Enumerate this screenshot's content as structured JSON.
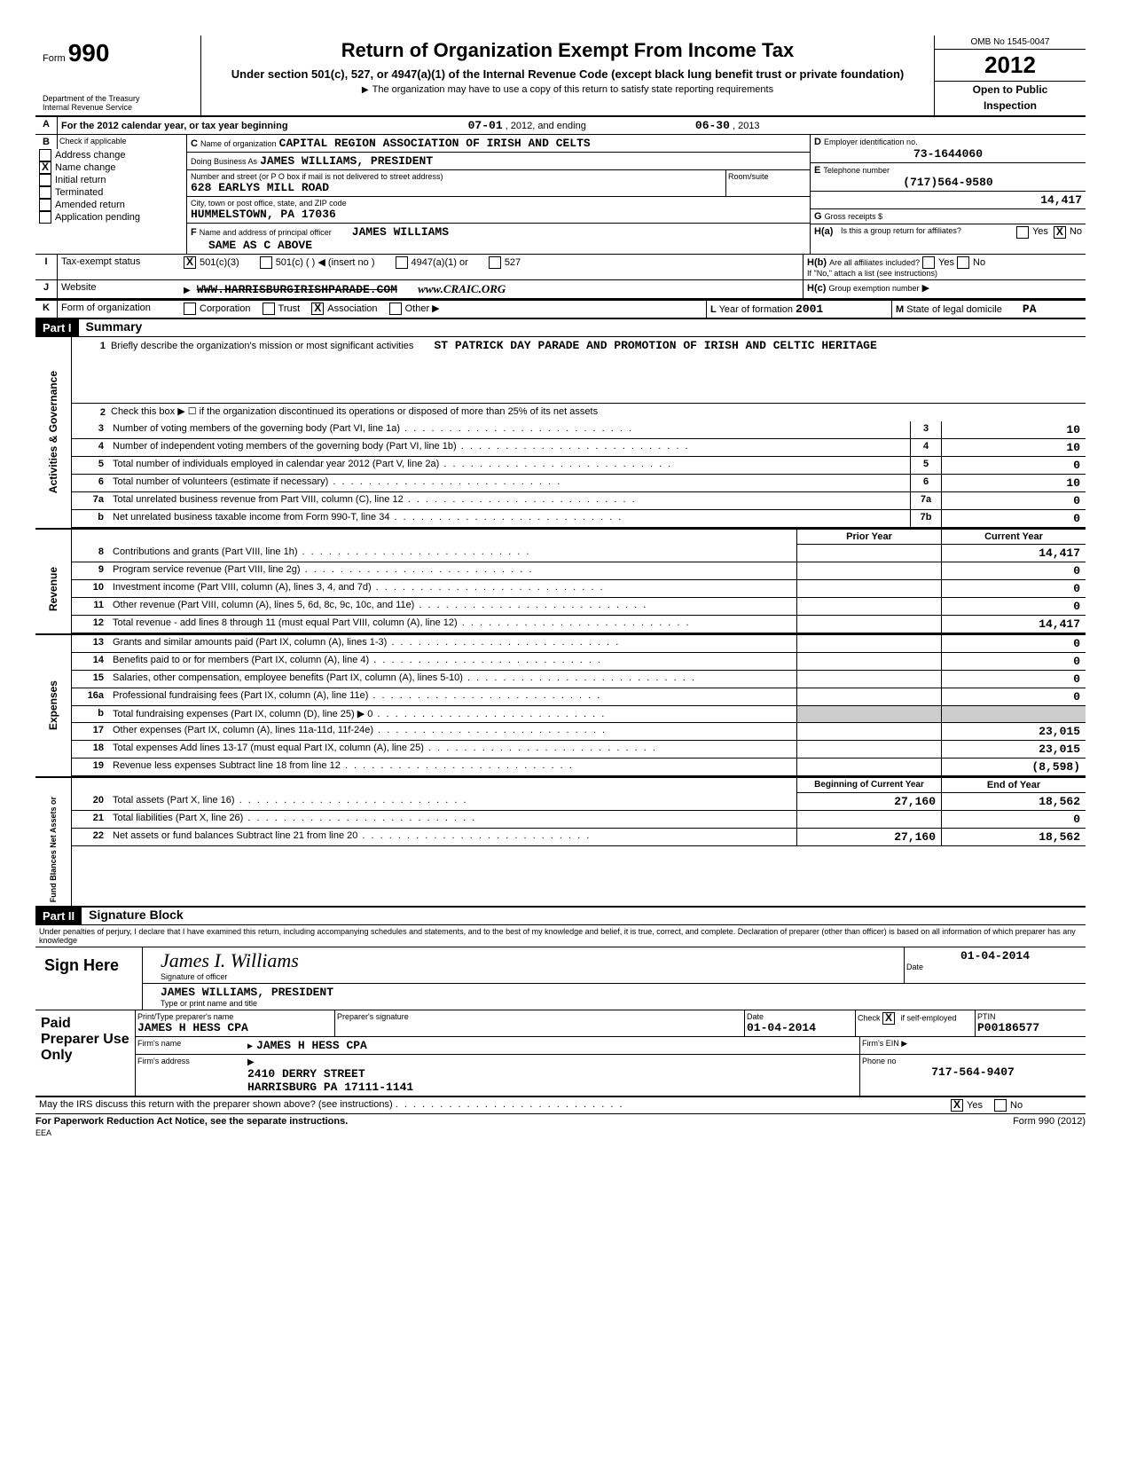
{
  "form": {
    "number": "990",
    "title": "Return of Organization Exempt From Income Tax",
    "subtitle": "Under section 501(c), 527, or 4947(a)(1) of the Internal Revenue Code (except black lung benefit trust or private foundation)",
    "note": "The organization may have to use a copy of this return to satisfy state reporting requirements",
    "dept": "Department of the Treasury",
    "irs": "Internal Revenue Service",
    "omb": "OMB No 1545-0047",
    "year": "2012",
    "open": "Open to Public",
    "inspection": "Inspection"
  },
  "A": {
    "label": "For the 2012 calendar year, or tax year beginning",
    "begin": "07-01",
    "mid": ", 2012, and ending",
    "end": "06-30",
    "endyr": ", 2013"
  },
  "B": {
    "label": "Check if applicable",
    "opts": [
      "Address change",
      "Name change",
      "Initial return",
      "Terminated",
      "Amended return",
      "Application pending"
    ],
    "checked_idx": 1
  },
  "C": {
    "name_label": "Name of organization",
    "name": "CAPITAL REGION ASSOCIATION OF IRISH AND CELTS",
    "dba_label": "Doing Business As",
    "dba": "JAMES WILLIAMS, PRESIDENT",
    "street_label": "Number and street (or P O box if mail is not delivered to street address)",
    "street": "628 EARLYS MILL ROAD",
    "city_label": "City, town or post office, state, and ZIP code",
    "city": "HUMMELSTOWN, PA 17036",
    "room_label": "Room/suite"
  },
  "D": {
    "label": "Employer identification no.",
    "value": "73-1644060"
  },
  "E": {
    "label": "Telephone number",
    "value": "(717)564-9580"
  },
  "G": {
    "label": "Gross receipts   $",
    "value": "14,417"
  },
  "F": {
    "label": "Name and address of principal officer",
    "name": "JAMES WILLIAMS",
    "same": "SAME AS C ABOVE"
  },
  "H": {
    "a": "Is this a group return for affiliates?",
    "a_yes": "Yes",
    "a_no": "No",
    "b": "Are all affiliates included?",
    "b_note": "If \"No,\" attach a list (see instructions)",
    "c": "Group exemption number"
  },
  "I": {
    "label": "Tax-exempt status",
    "opts": [
      "501(c)(3)",
      "501(c) (",
      "(insert no )",
      "4947(a)(1) or",
      "527"
    ]
  },
  "J": {
    "label": "Website",
    "value": "WWW.HARRISBURGIRISHPARADE.COM",
    "hand": "www.CRAIC.ORG"
  },
  "K": {
    "label": "Form of organization",
    "opts": [
      "Corporation",
      "Trust",
      "Association",
      "Other"
    ],
    "checked_idx": 2
  },
  "L": {
    "label": "Year of formation",
    "value": "2001"
  },
  "M": {
    "label": "State of legal domicile",
    "value": "PA"
  },
  "partI": {
    "header": "Part I",
    "title": "Summary",
    "section_ag": "Activities & Governance",
    "section_rev": "Revenue",
    "section_exp": "Expenses",
    "section_fb": "Fund Blances Net Assets or",
    "l1_label": "Briefly describe the organization's mission or most significant activities",
    "l1_val": "ST PATRICK DAY PARADE AND PROMOTION OF IRISH AND CELTIC HERITAGE",
    "l2": "Check this box ▶ ☐ if the organization discontinued its operations or disposed of more than 25% of its net assets",
    "lines_ag": [
      {
        "n": "3",
        "d": "Number of voting members of the governing body (Part VI, line 1a)",
        "box": "3",
        "v": "10"
      },
      {
        "n": "4",
        "d": "Number of independent voting members of the governing body (Part VI, line 1b)",
        "box": "4",
        "v": "10"
      },
      {
        "n": "5",
        "d": "Total number of individuals employed in calendar year 2012 (Part V, line 2a)",
        "box": "5",
        "v": "0"
      },
      {
        "n": "6",
        "d": "Total number of volunteers (estimate if necessary)",
        "box": "6",
        "v": "10"
      },
      {
        "n": "7a",
        "d": "Total unrelated business revenue from Part VIII, column (C), line 12",
        "box": "7a",
        "v": "0"
      },
      {
        "n": "b",
        "d": "Net unrelated business taxable income from Form 990-T, line 34",
        "box": "7b",
        "v": "0"
      }
    ],
    "col_prior": "Prior Year",
    "col_curr": "Current Year",
    "lines_rev": [
      {
        "n": "8",
        "d": "Contributions and grants (Part VIII, line 1h)",
        "p": "",
        "c": "14,417"
      },
      {
        "n": "9",
        "d": "Program service revenue (Part VIII, line 2g)",
        "p": "",
        "c": "0"
      },
      {
        "n": "10",
        "d": "Investment income (Part VIII, column (A), lines 3, 4, and 7d)",
        "p": "",
        "c": "0"
      },
      {
        "n": "11",
        "d": "Other revenue (Part VIII, column (A), lines 5, 6d, 8c, 9c, 10c, and 11e)",
        "p": "",
        "c": "0"
      },
      {
        "n": "12",
        "d": "Total revenue - add lines 8 through 11 (must equal Part VIII, column (A), line 12)",
        "p": "",
        "c": "14,417"
      }
    ],
    "lines_exp": [
      {
        "n": "13",
        "d": "Grants and similar amounts paid (Part IX, column (A), lines 1-3)",
        "p": "",
        "c": "0"
      },
      {
        "n": "14",
        "d": "Benefits paid to or for members (Part IX, column (A), line 4)",
        "p": "",
        "c": "0"
      },
      {
        "n": "15",
        "d": "Salaries, other compensation, employee benefits (Part IX, column (A), lines 5-10)",
        "p": "",
        "c": "0"
      },
      {
        "n": "16a",
        "d": "Professional fundraising fees (Part IX, column (A), line 11e)",
        "p": "",
        "c": "0"
      },
      {
        "n": "b",
        "d": "Total fundraising expenses (Part IX, column (D), line 25) ▶                                0",
        "p": "shaded",
        "c": "shaded"
      },
      {
        "n": "17",
        "d": "Other expenses (Part IX, column (A), lines 11a-11d, 11f-24e)",
        "p": "",
        "c": "23,015"
      },
      {
        "n": "18",
        "d": "Total expenses  Add lines 13-17 (must equal Part IX, column (A), line 25)",
        "p": "",
        "c": "23,015"
      },
      {
        "n": "19",
        "d": "Revenue less expenses  Subtract line 18 from line 12",
        "p": "",
        "c": "(8,598)"
      }
    ],
    "col_beg": "Beginning of Current Year",
    "col_end": "End of Year",
    "lines_fb": [
      {
        "n": "20",
        "d": "Total assets (Part X, line 16)",
        "p": "27,160",
        "c": "18,562"
      },
      {
        "n": "21",
        "d": "Total liabilities (Part X, line 26)",
        "p": "",
        "c": "0"
      },
      {
        "n": "22",
        "d": "Net assets or fund balances  Subtract line 21 from line 20",
        "p": "27,160",
        "c": "18,562"
      }
    ]
  },
  "partII": {
    "header": "Part II",
    "title": "Signature Block",
    "perjury": "Under penalties of perjury, I declare that I have examined this return, including accompanying schedules and statements, and to the best of my knowledge and belief, it is true, correct, and complete. Declaration of preparer (other than officer) is based on all information of which preparer has any knowledge",
    "sign_here": "Sign Here",
    "sig_label": "Signature of officer",
    "date_label": "Date",
    "sig_date": "01-04-2014",
    "name_title": "JAMES WILLIAMS, PRESIDENT",
    "name_title_label": "Type or print name and title",
    "paid": "Paid Preparer Use Only",
    "prep_name_label": "Print/Type preparer's name",
    "prep_name": "JAMES H HESS CPA",
    "prep_sig_label": "Preparer's signature",
    "prep_date": "01-04-2014",
    "check_self": "Check ☒ if self-employed",
    "ptin_label": "PTIN",
    "ptin": "P00186577",
    "firm_name_label": "Firm's name",
    "firm_name": "JAMES H HESS CPA",
    "firm_ein_label": "Firm's EIN",
    "firm_addr_label": "Firm's address",
    "firm_addr1": "2410 DERRY STREET",
    "firm_addr2": "HARRISBURG PA 17111-1141",
    "phone_label": "Phone no",
    "phone": "717-564-9407",
    "discuss": "May the IRS discuss this return with the preparer shown above? (see instructions)",
    "discuss_yes": "Yes",
    "discuss_no": "No",
    "paperwork": "For Paperwork Reduction Act Notice, see the separate instructions.",
    "formfoot": "Form 990 (2012)",
    "eea": "EEA"
  }
}
